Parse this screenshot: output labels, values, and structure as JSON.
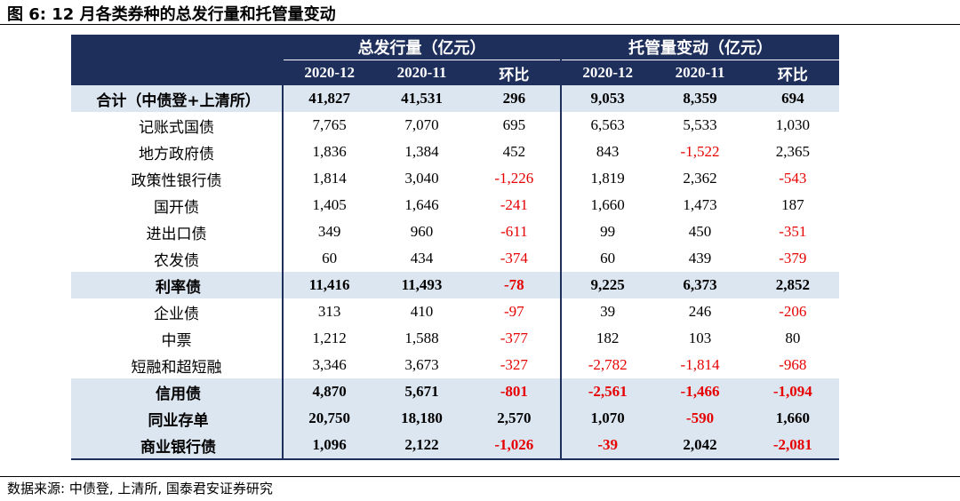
{
  "title": "图 6:  12 月各类券种的总发行量和托管量变动",
  "source": "数据来源:  中债登, 上清所, 国泰君安证券研究",
  "header": {
    "group1": "总发行量（亿元）",
    "group2": "托管量变动（亿元）",
    "cols": [
      "2020-12",
      "2020-11",
      "环比",
      "2020-12",
      "2020-11",
      "环比"
    ]
  },
  "colors": {
    "header_bg": "#1f2f5c",
    "sum_row_bg": "#dce6f1",
    "negative": "#e60000"
  },
  "rows": [
    {
      "label": "合计（中债登+上清所）",
      "indent": 0,
      "sum": true,
      "values": [
        "41,827",
        "41,531",
        "296",
        "9,053",
        "8,359",
        "694"
      ]
    },
    {
      "label": "记账式国债",
      "indent": 1,
      "sum": false,
      "values": [
        "7,765",
        "7,070",
        "695",
        "6,563",
        "5,533",
        "1,030"
      ]
    },
    {
      "label": "地方政府债",
      "indent": 1,
      "sum": false,
      "values": [
        "1,836",
        "1,384",
        "452",
        "843",
        "-1,522",
        "2,365"
      ]
    },
    {
      "label": "政策性银行债",
      "indent": 1,
      "sum": false,
      "values": [
        "1,814",
        "3,040",
        "-1,226",
        "1,819",
        "2,362",
        "-543"
      ]
    },
    {
      "label": "国开债",
      "indent": 2,
      "sum": false,
      "values": [
        "1,405",
        "1,646",
        "-241",
        "1,660",
        "1,473",
        "187"
      ]
    },
    {
      "label": "进出口债",
      "indent": 2,
      "sum": false,
      "values": [
        "349",
        "960",
        "-611",
        "99",
        "450",
        "-351"
      ]
    },
    {
      "label": "农发债",
      "indent": 2,
      "sum": false,
      "values": [
        "60",
        "434",
        "-374",
        "60",
        "439",
        "-379"
      ]
    },
    {
      "label": "利率债",
      "indent": 0,
      "sum": true,
      "values": [
        "11,416",
        "11,493",
        "-78",
        "9,225",
        "6,373",
        "2,852"
      ]
    },
    {
      "label": "企业债",
      "indent": 1,
      "sum": false,
      "values": [
        "313",
        "410",
        "-97",
        "39",
        "246",
        "-206"
      ]
    },
    {
      "label": "中票",
      "indent": 1,
      "sum": false,
      "values": [
        "1,212",
        "1,588",
        "-377",
        "182",
        "103",
        "80"
      ]
    },
    {
      "label": "短融和超短融",
      "indent": 1,
      "sum": false,
      "values": [
        "3,346",
        "3,673",
        "-327",
        "-2,782",
        "-1,814",
        "-968"
      ]
    },
    {
      "label": "信用债",
      "indent": 0,
      "sum": true,
      "values": [
        "4,870",
        "5,671",
        "-801",
        "-2,561",
        "-1,466",
        "-1,094"
      ]
    },
    {
      "label": "同业存单",
      "indent": 0,
      "sum": true,
      "values": [
        "20,750",
        "18,180",
        "2,570",
        "1,070",
        "-590",
        "1,660"
      ]
    },
    {
      "label": "商业银行债",
      "indent": 0,
      "sum": true,
      "values": [
        "1,096",
        "2,122",
        "-1,026",
        "-39",
        "2,042",
        "-2,081"
      ]
    }
  ]
}
